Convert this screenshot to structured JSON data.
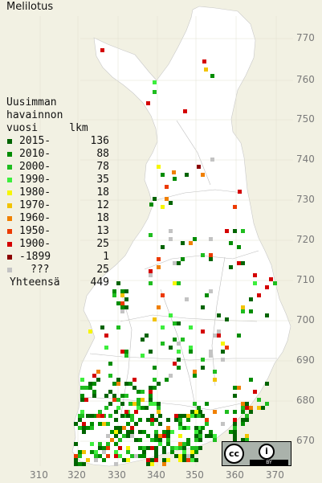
{
  "title": "Melilotus",
  "legend": {
    "header_lines": [
      "Uusimman",
      "havainnon",
      "vuosi     lkm"
    ],
    "items": [
      {
        "label": "2015-",
        "count": "136",
        "color": "#006400"
      },
      {
        "label": "2010-",
        "count": "88",
        "color": "#008c00"
      },
      {
        "label": "2000-",
        "count": "78",
        "color": "#1fbd1f"
      },
      {
        "label": "1990-",
        "count": "35",
        "color": "#3dee3d"
      },
      {
        "label": "1980-",
        "count": "18",
        "color": "#f6f600"
      },
      {
        "label": "1970-",
        "count": "12",
        "color": "#f2c300"
      },
      {
        "label": "1960-",
        "count": "18",
        "color": "#f08000"
      },
      {
        "label": "1950-",
        "count": "13",
        "color": "#ec3a00"
      },
      {
        "label": "1900-",
        "count": "25",
        "color": "#d40000"
      },
      {
        "label": "-1899",
        "count": "1",
        "color": "#8b0000"
      },
      {
        "label": "???",
        "count": "25",
        "color": "#c3c3c3"
      }
    ],
    "total_label": "Yhteensä",
    "total_count": "449"
  },
  "axes": {
    "x_labels": [
      "310",
      "320",
      "330",
      "340",
      "350",
      "360",
      "370"
    ],
    "y_labels": [
      "770",
      "760",
      "750",
      "740",
      "730",
      "720",
      "710",
      "700",
      "690",
      "680",
      "670"
    ]
  },
  "license": {
    "cc": "cc",
    "by": "i",
    "by_text": "BY"
  },
  "colors": {
    "background": "#f2f1e3",
    "land": "#ffffff",
    "border": "#b5b5b5"
  }
}
